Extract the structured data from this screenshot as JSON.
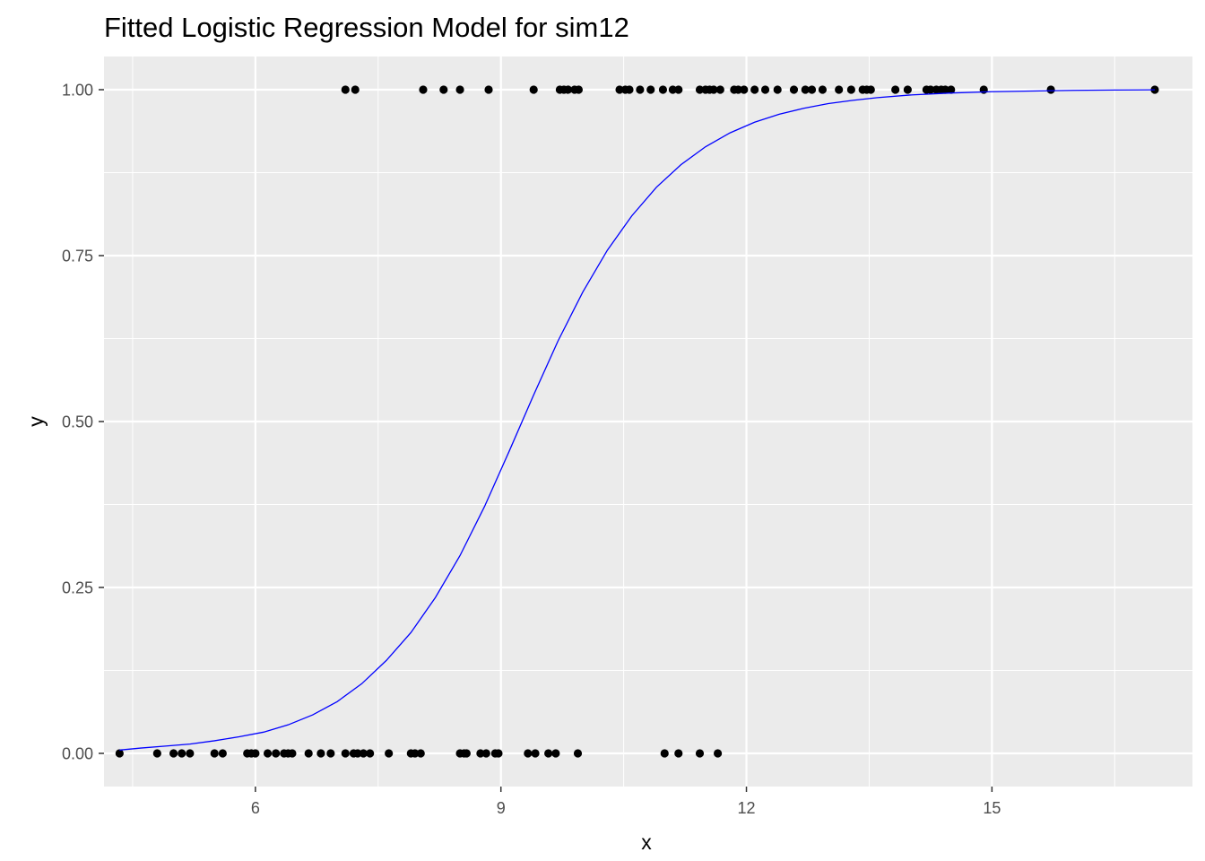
{
  "chart_data": {
    "type": "scatter",
    "title": "Fitted Logistic Regression Model for sim12",
    "xlabel": "x",
    "ylabel": "y",
    "xlim": [
      4.15,
      17.45
    ],
    "ylim": [
      -0.05,
      1.05
    ],
    "x_ticks": [
      6,
      9,
      12,
      15
    ],
    "x_tick_labels": [
      "6",
      "9",
      "12",
      "15"
    ],
    "x_minor_ticks": [
      4.5,
      7.5,
      10.5,
      13.5,
      16.5
    ],
    "y_ticks": [
      0,
      0.25,
      0.5,
      0.75,
      1
    ],
    "y_tick_labels": [
      "0.00",
      "0.25",
      "0.50",
      "0.75",
      "1.00"
    ],
    "y_minor_ticks": [
      0.125,
      0.375,
      0.625,
      0.875
    ],
    "grid": true,
    "legend": "none",
    "colors": {
      "panel": "#ebebeb",
      "grid": "#ffffff",
      "points": "#000000",
      "curve": "#0000ff",
      "tick_text": "#4d4d4d"
    },
    "points": {
      "x_y0": [
        4.34,
        4.8,
        5.0,
        5.1,
        5.2,
        5.5,
        5.6,
        5.9,
        5.95,
        6.0,
        6.15,
        6.25,
        6.35,
        6.4,
        6.45,
        6.65,
        6.8,
        6.92,
        7.1,
        7.2,
        7.25,
        7.32,
        7.4,
        7.63,
        7.9,
        7.95,
        8.02,
        8.5,
        8.55,
        8.58,
        8.75,
        8.82,
        8.93,
        8.97,
        9.33,
        9.42,
        9.58,
        9.67,
        9.94,
        11.0,
        11.17,
        11.43,
        11.65
      ],
      "x_y1": [
        7.1,
        7.22,
        8.05,
        8.3,
        8.5,
        8.85,
        9.4,
        9.72,
        9.77,
        9.82,
        9.9,
        9.95,
        10.45,
        10.52,
        10.57,
        10.7,
        10.83,
        10.98,
        11.1,
        11.17,
        11.43,
        11.5,
        11.55,
        11.6,
        11.68,
        11.85,
        11.9,
        11.97,
        12.1,
        12.23,
        12.38,
        12.58,
        12.72,
        12.8,
        12.93,
        13.13,
        13.28,
        13.42,
        13.47,
        13.52,
        13.82,
        13.97,
        14.2,
        14.25,
        14.32,
        14.38,
        14.43,
        14.5,
        14.9,
        15.72,
        16.99
      ]
    },
    "curve": {
      "x": [
        4.34,
        4.6,
        4.9,
        5.2,
        5.5,
        5.8,
        6.1,
        6.4,
        6.7,
        7.0,
        7.3,
        7.6,
        7.9,
        8.2,
        8.5,
        8.8,
        9.1,
        9.4,
        9.7,
        10.0,
        10.3,
        10.6,
        10.9,
        11.2,
        11.5,
        11.8,
        12.1,
        12.4,
        12.7,
        13.0,
        13.3,
        13.6,
        14.0,
        14.5,
        15.0,
        15.5,
        16.0,
        16.5,
        16.99
      ],
      "y": [
        0.005,
        0.008,
        0.011,
        0.014,
        0.019,
        0.025,
        0.032,
        0.043,
        0.058,
        0.078,
        0.105,
        0.14,
        0.182,
        0.235,
        0.298,
        0.372,
        0.455,
        0.54,
        0.622,
        0.695,
        0.758,
        0.81,
        0.853,
        0.887,
        0.914,
        0.935,
        0.951,
        0.963,
        0.972,
        0.979,
        0.984,
        0.988,
        0.992,
        0.995,
        0.997,
        0.998,
        0.999,
        0.9995,
        0.9998
      ]
    }
  }
}
